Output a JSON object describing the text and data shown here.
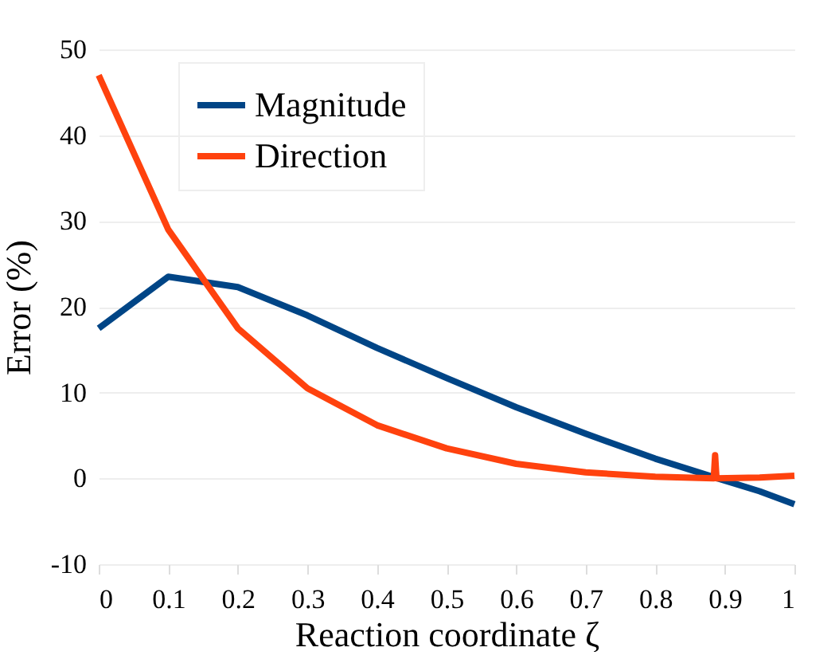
{
  "chart_data": {
    "type": "line",
    "xlabel": "Reaction coordinate ζ",
    "ylabel": "Error (%)",
    "xlim": [
      0,
      1
    ],
    "xticks": [
      0,
      0.1,
      0.2,
      0.3,
      0.4,
      0.5,
      0.6,
      0.7,
      0.8,
      0.9,
      1
    ],
    "ylim": [
      -10,
      50
    ],
    "yticks": [
      -10,
      0,
      10,
      20,
      30,
      40,
      50
    ],
    "grid": "y",
    "legend": "top left",
    "line_style": "solid",
    "marker": "none",
    "series": [
      {
        "name": "Magnitude",
        "color": "#004586",
        "x": [
          0,
          0.1,
          0.2,
          0.3,
          0.4,
          0.5,
          0.6,
          0.7,
          0.8,
          0.89,
          0.95,
          1
        ],
        "values": [
          17.5,
          23.5,
          22.3,
          19,
          15.2,
          11.7,
          8.3,
          5.2,
          2.3,
          0,
          -1.5,
          -3
        ]
      },
      {
        "name": "Direction",
        "color": "#ff420e",
        "x": [
          0,
          0.1,
          0.2,
          0.3,
          0.4,
          0.5,
          0.6,
          0.7,
          0.8,
          0.884,
          0.886,
          0.888,
          0.95,
          1
        ],
        "values": [
          47,
          29,
          17.5,
          10.5,
          6.2,
          3.5,
          1.7,
          0.7,
          0.2,
          0,
          2.7,
          0,
          0.1,
          0.3
        ]
      }
    ]
  }
}
